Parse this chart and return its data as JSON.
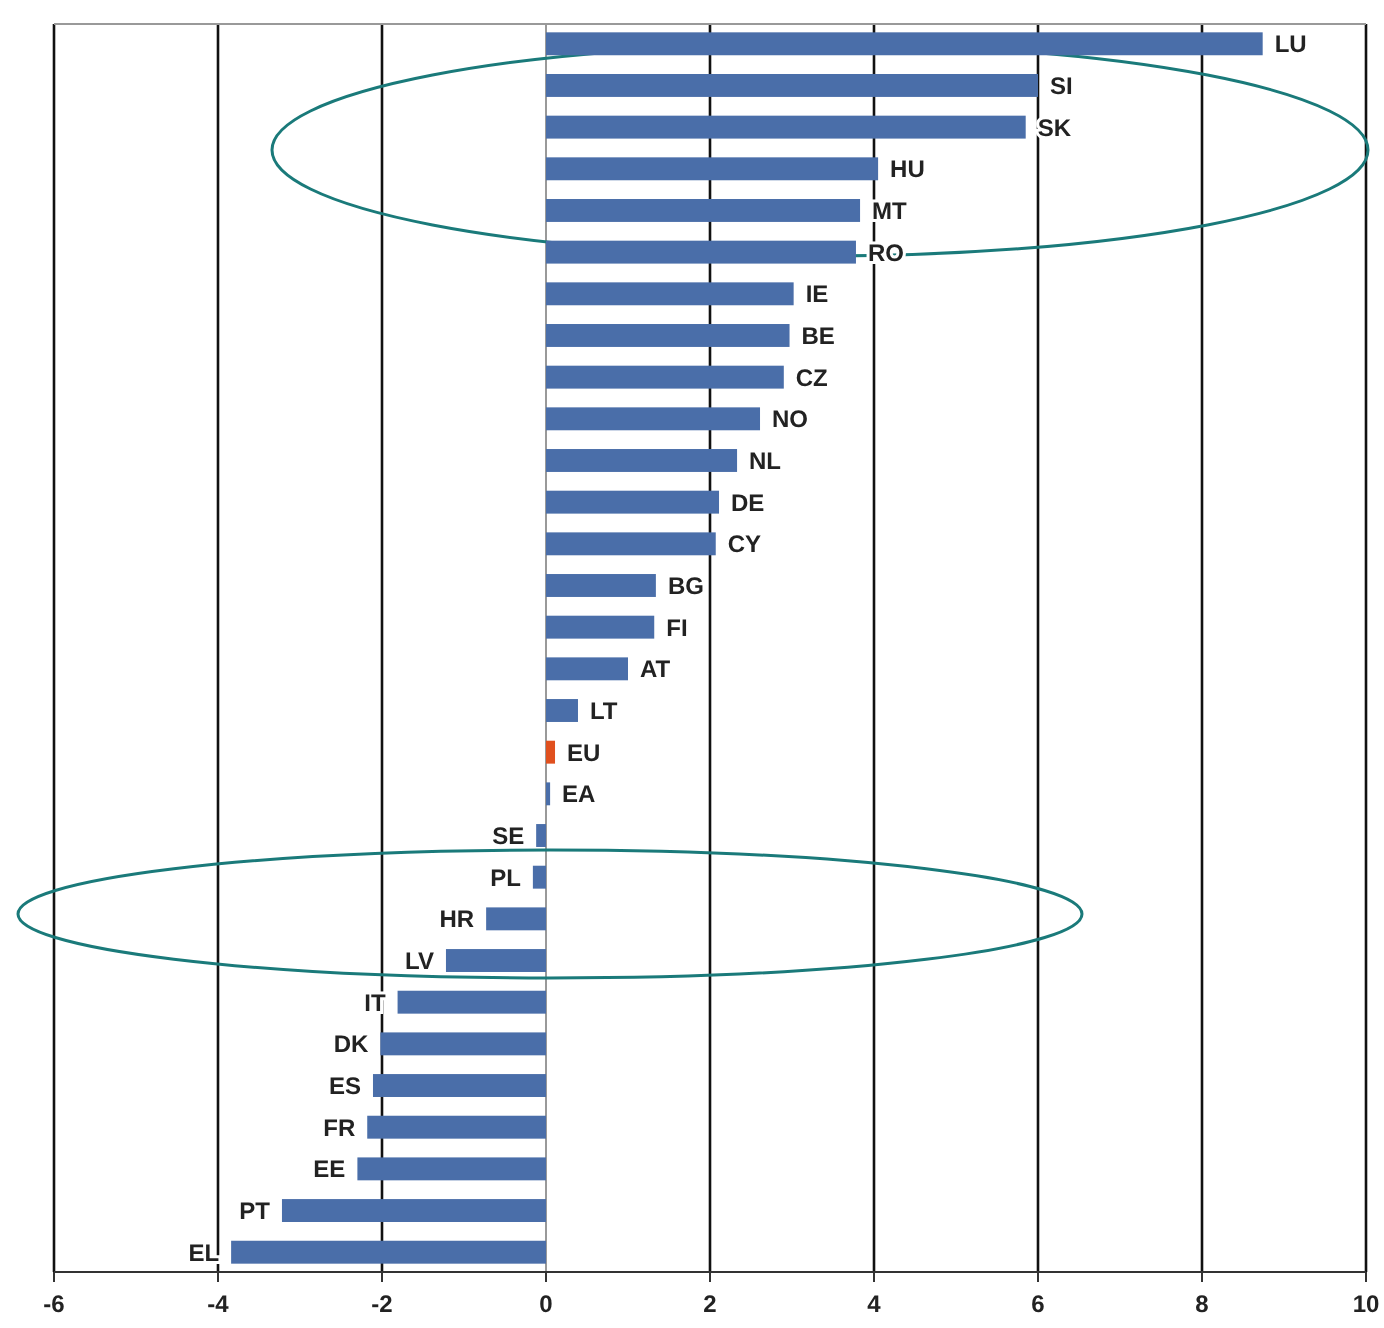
{
  "chart_data": {
    "type": "bar",
    "orientation": "horizontal",
    "categories": [
      "LU",
      "SI",
      "SK",
      "HU",
      "MT",
      "RO",
      "IE",
      "BE",
      "CZ",
      "NO",
      "NL",
      "DE",
      "CY",
      "BG",
      "FI",
      "AT",
      "LT",
      "EU",
      "EA",
      "SE",
      "PL",
      "HR",
      "LV",
      "IT",
      "DK",
      "ES",
      "FR",
      "EE",
      "PT",
      "EL"
    ],
    "values": [
      8.74,
      6.0,
      5.85,
      4.05,
      3.83,
      3.78,
      3.02,
      2.97,
      2.9,
      2.61,
      2.33,
      2.11,
      2.07,
      1.34,
      1.32,
      1.0,
      0.39,
      0.11,
      0.05,
      -0.12,
      -0.16,
      -0.73,
      -1.22,
      -1.81,
      -2.02,
      -2.11,
      -2.18,
      -2.3,
      -3.22,
      -3.84
    ],
    "colors": [
      "#4a6ea9",
      "#4a6ea9",
      "#4a6ea9",
      "#4a6ea9",
      "#4a6ea9",
      "#4a6ea9",
      "#4a6ea9",
      "#4a6ea9",
      "#4a6ea9",
      "#4a6ea9",
      "#4a6ea9",
      "#4a6ea9",
      "#4a6ea9",
      "#4a6ea9",
      "#4a6ea9",
      "#4a6ea9",
      "#4a6ea9",
      "#e0501e",
      "#4a6ea9",
      "#4a6ea9",
      "#4a6ea9",
      "#4a6ea9",
      "#4a6ea9",
      "#4a6ea9",
      "#4a6ea9",
      "#4a6ea9",
      "#4a6ea9",
      "#4a6ea9",
      "#4a6ea9",
      "#4a6ea9"
    ],
    "xlim": [
      -6,
      10
    ],
    "xticks": [
      -6,
      -4,
      -2,
      0,
      2,
      4,
      6,
      8,
      10
    ],
    "grid": "x"
  }
}
